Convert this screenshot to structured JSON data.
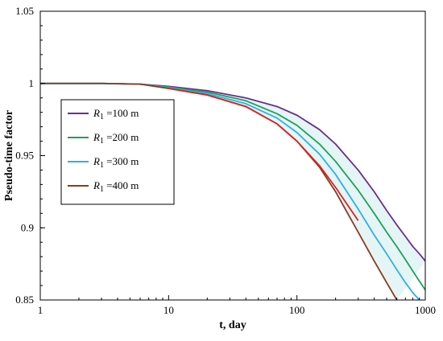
{
  "chart_data": {
    "type": "line",
    "xlabel": "t, day",
    "ylabel": "Pseudo-time factor",
    "xscale": "log",
    "xlim": [
      1,
      1000
    ],
    "ylim": [
      0.85,
      1.05
    ],
    "x_ticks": [
      1,
      10,
      100,
      1000
    ],
    "x_tick_labels": [
      "1",
      "10",
      "100",
      "1000"
    ],
    "y_ticks": [
      0.85,
      0.9,
      0.95,
      1.0,
      1.05
    ],
    "y_tick_labels": [
      "0.85",
      "0.9",
      "0.95",
      "1",
      "1.05"
    ],
    "grid": false,
    "legend_position": "left",
    "series": [
      {
        "name_prefix": "R",
        "name_subscript": "1",
        "name_suffix": " =100 m",
        "color": "#6a2d8e",
        "x": [
          1,
          3,
          6,
          10,
          20,
          40,
          70,
          100,
          150,
          200,
          300,
          400,
          500,
          600,
          700,
          800,
          900,
          1000
        ],
        "y": [
          1.0,
          1.0,
          0.9995,
          0.998,
          0.995,
          0.99,
          0.984,
          0.978,
          0.968,
          0.958,
          0.94,
          0.925,
          0.912,
          0.902,
          0.894,
          0.887,
          0.882,
          0.877
        ]
      },
      {
        "name_prefix": "R",
        "name_subscript": "1",
        "name_suffix": " =200 m",
        "color": "#1fa05a",
        "x": [
          1,
          3,
          6,
          10,
          20,
          40,
          70,
          100,
          150,
          200,
          300,
          400,
          500,
          600,
          700,
          800,
          900,
          1000
        ],
        "y": [
          1.0,
          1.0,
          0.9995,
          0.9975,
          0.994,
          0.988,
          0.979,
          0.971,
          0.958,
          0.946,
          0.926,
          0.91,
          0.897,
          0.887,
          0.878,
          0.87,
          0.863,
          0.857
        ]
      },
      {
        "name_prefix": "R",
        "name_subscript": "1",
        "name_suffix": " =300 m",
        "color": "#2bb0e6",
        "x": [
          1,
          3,
          6,
          10,
          20,
          40,
          70,
          100,
          150,
          200,
          300,
          400,
          500,
          600,
          700,
          800,
          900
        ],
        "y": [
          1.0,
          1.0,
          0.9995,
          0.997,
          0.993,
          0.986,
          0.976,
          0.966,
          0.951,
          0.937,
          0.913,
          0.895,
          0.882,
          0.871,
          0.862,
          0.855,
          0.85
        ]
      },
      {
        "name_prefix": "R",
        "name_subscript": "1",
        "name_suffix": " =400 m",
        "color": "#8b3a1e",
        "x": [
          1,
          3,
          6,
          10,
          20,
          40,
          70,
          100,
          150,
          200,
          300,
          400,
          500,
          600
        ],
        "y": [
          1.0,
          1.0,
          0.9995,
          0.9965,
          0.992,
          0.984,
          0.972,
          0.96,
          0.942,
          0.925,
          0.897,
          0.877,
          0.862,
          0.85
        ]
      },
      {
        "name_prefix": "",
        "name_subscript": "",
        "name_suffix": "",
        "color": "#e02020",
        "show_in_legend": false,
        "x": [
          10,
          20,
          40,
          70,
          100,
          150,
          200,
          300
        ],
        "y": [
          0.9965,
          0.992,
          0.984,
          0.972,
          0.96,
          0.943,
          0.928,
          0.905
        ]
      }
    ]
  }
}
